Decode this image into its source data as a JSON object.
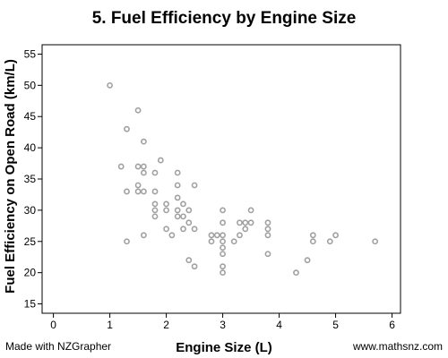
{
  "chart_data": {
    "type": "scatter",
    "title": "5. Fuel Efficiency by Engine Size",
    "xlabel": "Engine Size (L)",
    "ylabel": "Fuel Efficiency on Open Road (km/L)",
    "xlim": [
      -0.2,
      6.15
    ],
    "ylim": [
      13.5,
      56.5
    ],
    "xticks": [
      0,
      1,
      2,
      3,
      4,
      5,
      6
    ],
    "yticks": [
      15,
      20,
      25,
      30,
      35,
      40,
      45,
      50,
      55
    ],
    "grid": false,
    "marker_color": "#a0a0a0",
    "points": [
      [
        1.0,
        50
      ],
      [
        1.5,
        46
      ],
      [
        1.3,
        43
      ],
      [
        1.6,
        41
      ],
      [
        1.2,
        37
      ],
      [
        1.5,
        37
      ],
      [
        1.6,
        37
      ],
      [
        1.6,
        36
      ],
      [
        1.8,
        36
      ],
      [
        1.9,
        38
      ],
      [
        2.2,
        36
      ],
      [
        2.5,
        34
      ],
      [
        1.5,
        34
      ],
      [
        1.5,
        33
      ],
      [
        1.3,
        33
      ],
      [
        1.6,
        33
      ],
      [
        1.8,
        33
      ],
      [
        2.2,
        34
      ],
      [
        2.2,
        32
      ],
      [
        2.3,
        31
      ],
      [
        1.8,
        31
      ],
      [
        2.0,
        31
      ],
      [
        2.2,
        30
      ],
      [
        1.8,
        30
      ],
      [
        2.0,
        30
      ],
      [
        2.4,
        30
      ],
      [
        2.2,
        29
      ],
      [
        2.3,
        29
      ],
      [
        1.8,
        29
      ],
      [
        2.0,
        27
      ],
      [
        2.4,
        28
      ],
      [
        2.3,
        27
      ],
      [
        2.5,
        27
      ],
      [
        2.1,
        26
      ],
      [
        1.6,
        26
      ],
      [
        1.3,
        25
      ],
      [
        2.8,
        26
      ],
      [
        2.8,
        25
      ],
      [
        3.0,
        30
      ],
      [
        3.0,
        28
      ],
      [
        3.0,
        26
      ],
      [
        3.0,
        25
      ],
      [
        3.0,
        24
      ],
      [
        3.0,
        23
      ],
      [
        3.0,
        21
      ],
      [
        3.0,
        20
      ],
      [
        2.9,
        26
      ],
      [
        3.2,
        25
      ],
      [
        3.3,
        26
      ],
      [
        3.3,
        28
      ],
      [
        3.4,
        27
      ],
      [
        3.4,
        28
      ],
      [
        3.5,
        28
      ],
      [
        3.5,
        30
      ],
      [
        3.8,
        28
      ],
      [
        3.8,
        27
      ],
      [
        3.8,
        26
      ],
      [
        3.8,
        23
      ],
      [
        2.4,
        22
      ],
      [
        2.5,
        21
      ],
      [
        4.3,
        20
      ],
      [
        4.5,
        22
      ],
      [
        4.6,
        25
      ],
      [
        4.6,
        26
      ],
      [
        4.9,
        25
      ],
      [
        5.0,
        26
      ],
      [
        5.7,
        25
      ]
    ]
  },
  "footer": {
    "left": "Made with NZGrapher",
    "right": "www.mathsnz.com"
  }
}
